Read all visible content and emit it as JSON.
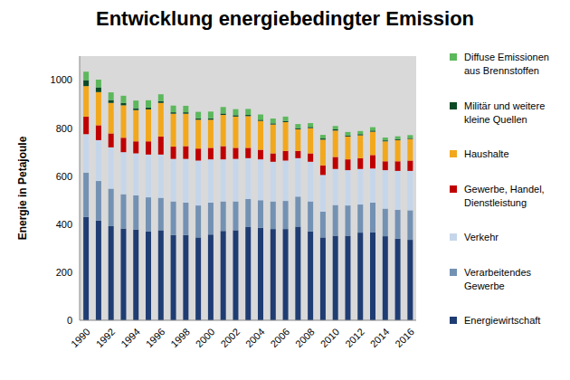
{
  "chart_data": {
    "type": "bar",
    "title": "Entwicklung energiebedingter Emission",
    "y_label": "Energie in Petajoule",
    "stacked": true,
    "grid": false,
    "legend": "right",
    "categories": [
      "1990",
      null,
      "1992",
      null,
      "1994",
      null,
      "1996",
      null,
      "1998",
      null,
      "2000",
      null,
      "2002",
      null,
      "2004",
      null,
      "2006",
      null,
      "2008",
      null,
      "2010",
      null,
      "2012",
      null,
      "2014",
      null,
      "2016"
    ],
    "ylim": [
      0,
      1100
    ],
    "yticks": [
      0,
      200,
      400,
      600,
      800,
      1000
    ],
    "series": [
      {
        "name": "Energiewirtschaft",
        "color": "#1f3d73",
        "values": [
          430,
          415,
          392,
          382,
          378,
          370,
          375,
          355,
          355,
          345,
          357,
          372,
          375,
          388,
          385,
          380,
          380,
          390,
          370,
          345,
          352,
          352,
          365,
          367,
          350,
          340,
          335
        ]
      },
      {
        "name": "Verarbeitendes Gewerbe",
        "color": "#7391b3",
        "values": [
          185,
          165,
          156,
          143,
          142,
          142,
          135,
          140,
          135,
          133,
          133,
          123,
          120,
          117,
          115,
          115,
          117,
          125,
          125,
          107,
          128,
          126,
          117,
          123,
          115,
          120,
          123
        ]
      },
      {
        "name": "Verkehr",
        "color": "#c6d6ea",
        "values": [
          160,
          170,
          172,
          175,
          175,
          178,
          180,
          177,
          182,
          187,
          180,
          175,
          177,
          170,
          170,
          165,
          168,
          160,
          165,
          153,
          150,
          147,
          148,
          142,
          160,
          162,
          164
        ]
      },
      {
        "name": "Gewerbe, Handel, Dienstleistung",
        "color": "#c00000",
        "values": [
          73,
          62,
          58,
          60,
          50,
          55,
          75,
          51,
          53,
          50,
          48,
          55,
          46,
          43,
          40,
          35,
          40,
          30,
          35,
          40,
          50,
          45,
          45,
          56,
          37,
          40,
          43
        ]
      },
      {
        "name": "Haushalte",
        "color": "#f2a81d",
        "values": [
          127,
          138,
          127,
          135,
          130,
          133,
          140,
          137,
          135,
          120,
          117,
          130,
          130,
          132,
          120,
          120,
          120,
          90,
          105,
          107,
          110,
          95,
          95,
          97,
          83,
          88,
          90
        ]
      },
      {
        "name": "Militär und weitere kleine Quellen",
        "color": "#0b4a26",
        "values": [
          25,
          20,
          12,
          10,
          8,
          8,
          8,
          6,
          6,
          6,
          6,
          6,
          6,
          5,
          5,
          5,
          5,
          5,
          5,
          5,
          5,
          5,
          5,
          5,
          4,
          4,
          4
        ]
      },
      {
        "name": "Diffuse Emissionen aus Brennstoffen",
        "color": "#5cb85c",
        "values": [
          35,
          32,
          32,
          30,
          32,
          30,
          28,
          28,
          27,
          27,
          28,
          27,
          25,
          25,
          22,
          20,
          18,
          17,
          16,
          15,
          14,
          14,
          13,
          14,
          12,
          12,
          12
        ]
      }
    ]
  }
}
